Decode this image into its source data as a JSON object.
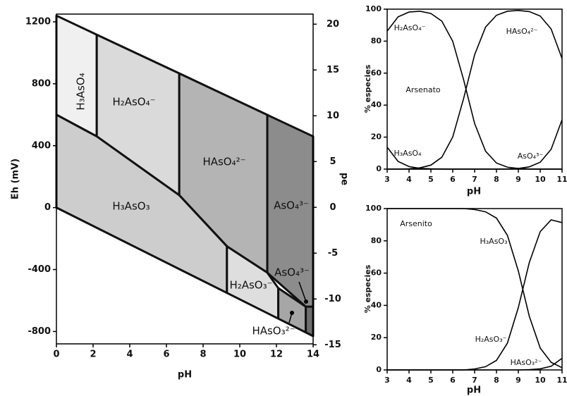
{
  "chart_data": [
    {
      "type": "phase",
      "xlabel": "pH",
      "ylabel": "Eh (mV)",
      "y2label": "pe",
      "xlim": [
        0,
        14
      ],
      "xticks": [
        0,
        2,
        4,
        6,
        8,
        10,
        12,
        14
      ],
      "ylim": [
        -880,
        1250
      ],
      "yticks": [
        -800,
        -400,
        0,
        400,
        800,
        1200
      ],
      "y2lim": [
        -14.9,
        21.1
      ],
      "y2ticks": [
        -15,
        -10,
        -5,
        0,
        5,
        10,
        15,
        20
      ],
      "regions": [
        {
          "name": "H₃AsO₄",
          "color": "#f0f0f0",
          "x": [
            0,
            2.2,
            2.2,
            0
          ],
          "y": [
            1240,
            1117,
            460,
            600
          ]
        },
        {
          "name": "H₂AsO₄⁻",
          "color": "#dadada",
          "x": [
            2.2,
            6.7,
            6.7,
            2.2
          ],
          "y": [
            1117,
            867,
            80,
            460
          ]
        },
        {
          "name": "HAsO₄²⁻",
          "color": "#b4b4b4",
          "x": [
            6.7,
            11.5,
            11.5,
            9.3,
            6.7
          ],
          "y": [
            867,
            599,
            -420,
            -250,
            80
          ]
        },
        {
          "name": "AsO₄³⁻",
          "color": "#8c8c8c",
          "x": [
            11.5,
            14,
            14,
            13.6,
            11.5
          ],
          "y": [
            599,
            460,
            -640,
            -640,
            -420
          ]
        },
        {
          "name": "H₃AsO₃",
          "color": "#cdcdcd",
          "x": [
            0,
            2.2,
            6.7,
            9.3,
            9.3,
            0
          ],
          "y": [
            600,
            460,
            80,
            -250,
            -551,
            0
          ]
        },
        {
          "name": "H₂AsO₃⁻",
          "color": "#dedede",
          "x": [
            9.3,
            11.5,
            12.1,
            12.1,
            9.3
          ],
          "y": [
            -250,
            -420,
            -520,
            -717,
            -551
          ]
        },
        {
          "name": "HAsO₃²⁻",
          "color": "#a6a6a6",
          "x": [
            12.1,
            13.6,
            13.6,
            12.1
          ],
          "y": [
            -520,
            -640,
            -806,
            -717
          ]
        },
        {
          "name": "AsO₄³⁻",
          "color": "#6e6e6e",
          "x": [
            13.6,
            14,
            14,
            13.6
          ],
          "y": [
            -640,
            -640,
            -830,
            -806
          ]
        }
      ]
    },
    {
      "type": "line",
      "xlabel": "pH",
      "ylabel": "% especies",
      "annotation": "Arsenato",
      "xlim": [
        3,
        11
      ],
      "xticks": [
        3,
        4,
        5,
        6,
        7,
        8,
        9,
        10,
        11
      ],
      "ylim": [
        0,
        100
      ],
      "yticks": [
        0,
        20,
        40,
        60,
        80,
        100
      ],
      "x": [
        3,
        3.5,
        4,
        4.5,
        5,
        5.5,
        6,
        6.5,
        7,
        7.5,
        8,
        8.5,
        9,
        9.5,
        10,
        10.5,
        11
      ],
      "series": [
        {
          "name": "H₃AsO₄",
          "color": "#000000",
          "values": [
            13.7,
            4.8,
            1.6,
            0.5,
            0.2,
            0.1,
            0,
            0,
            0,
            0,
            0,
            0,
            0,
            0,
            0,
            0,
            0
          ]
        },
        {
          "name": "H₂AsO₄⁻",
          "color": "#000000",
          "values": [
            86.3,
            95.2,
            98.2,
            98.7,
            97.3,
            92.5,
            79.9,
            55.7,
            28.5,
            11.2,
            3.8,
            1.2,
            0.4,
            0.1,
            0,
            0,
            0
          ]
        },
        {
          "name": "HAsO₄²⁻",
          "color": "#000000",
          "values": [
            0,
            0,
            0.2,
            0.8,
            2.5,
            7.4,
            20.1,
            44.3,
            71.5,
            88.8,
            96.2,
            98.7,
            99.2,
            98.5,
            95.7,
            87.6,
            69.1
          ]
        },
        {
          "name": "AsO₄³⁻",
          "color": "#000000",
          "values": [
            0,
            0,
            0,
            0,
            0,
            0,
            0,
            0,
            0,
            0,
            0,
            0.1,
            0.4,
            1.4,
            4.3,
            12.4,
            30.9
          ]
        }
      ]
    },
    {
      "type": "line",
      "xlabel": "pH",
      "ylabel": "% especies",
      "annotation": "Arsenito",
      "xlim": [
        3,
        11
      ],
      "xticks": [
        3,
        4,
        5,
        6,
        7,
        8,
        9,
        10,
        11
      ],
      "ylim": [
        0,
        100
      ],
      "yticks": [
        0,
        20,
        40,
        60,
        80,
        100
      ],
      "x": [
        3,
        3.5,
        4,
        4.5,
        5,
        5.5,
        6,
        6.5,
        7,
        7.5,
        8,
        8.5,
        9,
        9.5,
        10,
        10.5,
        11
      ],
      "series": [
        {
          "name": "H₃AsO₃",
          "color": "#000000",
          "values": [
            100,
            100,
            100,
            100,
            100,
            100,
            100,
            100,
            99.4,
            98.0,
            94.1,
            83.4,
            61.3,
            33.3,
            13.6,
            4.7,
            1.4
          ]
        },
        {
          "name": "H₂AsO₃⁻",
          "color": "#000000",
          "values": [
            0,
            0,
            0,
            0,
            0,
            0,
            0,
            0,
            0.6,
            2.0,
            5.9,
            16.6,
            38.7,
            66.5,
            85.7,
            93.0,
            91.3
          ]
        },
        {
          "name": "HAsO₃²⁻",
          "color": "#000000",
          "values": [
            0,
            0,
            0,
            0,
            0,
            0,
            0,
            0,
            0,
            0,
            0,
            0,
            0,
            0.2,
            0.7,
            2.3,
            7.2
          ]
        }
      ]
    }
  ]
}
